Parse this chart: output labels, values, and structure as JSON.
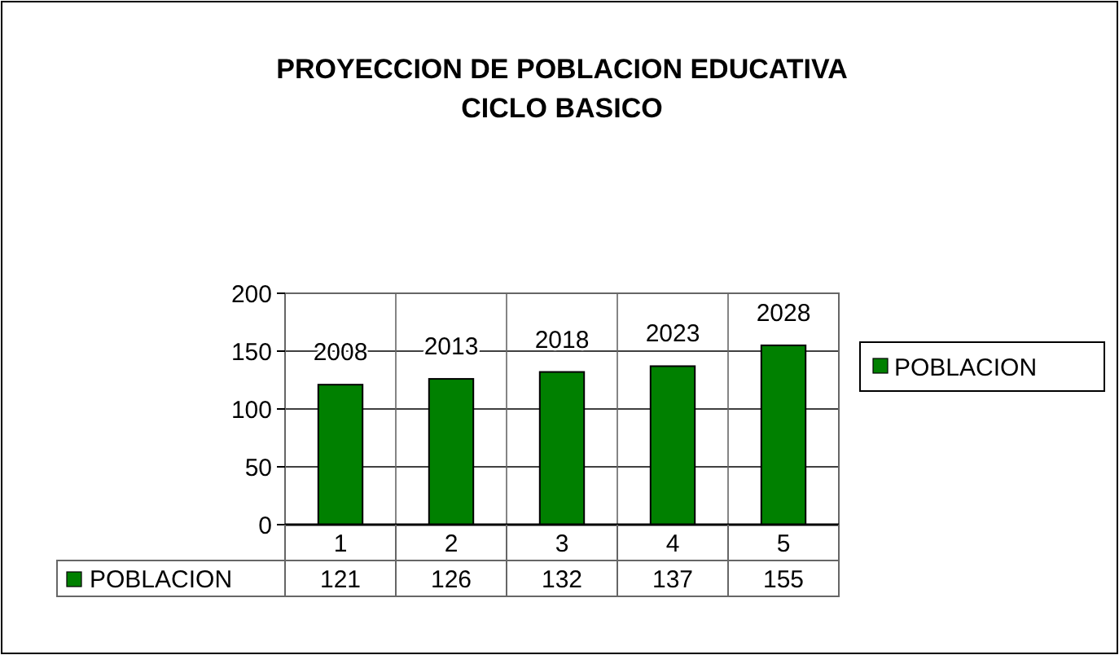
{
  "chart_data": {
    "type": "bar",
    "title": "PROYECCION DE POBLACION EDUCATIVA\nCICLO BASICO",
    "categories": [
      "1",
      "2",
      "3",
      "4",
      "5"
    ],
    "series": [
      {
        "name": "POBLACION",
        "color": "#008000",
        "values": [
          121,
          126,
          132,
          137,
          155
        ]
      }
    ],
    "ylim": [
      0,
      200
    ],
    "yticks": [
      0,
      50,
      100,
      150,
      200
    ],
    "grid": true,
    "legend": "right",
    "data_labels": true,
    "annotations": [
      {
        "text": "2008",
        "x": "1",
        "y": 121
      },
      {
        "text": "2013",
        "x": "2",
        "y": 126
      },
      {
        "text": "2018",
        "x": "3",
        "y": 132
      },
      {
        "text": "2023",
        "x": "4",
        "y": 137
      },
      {
        "text": "2028",
        "x": "5",
        "y": 155
      }
    ]
  }
}
